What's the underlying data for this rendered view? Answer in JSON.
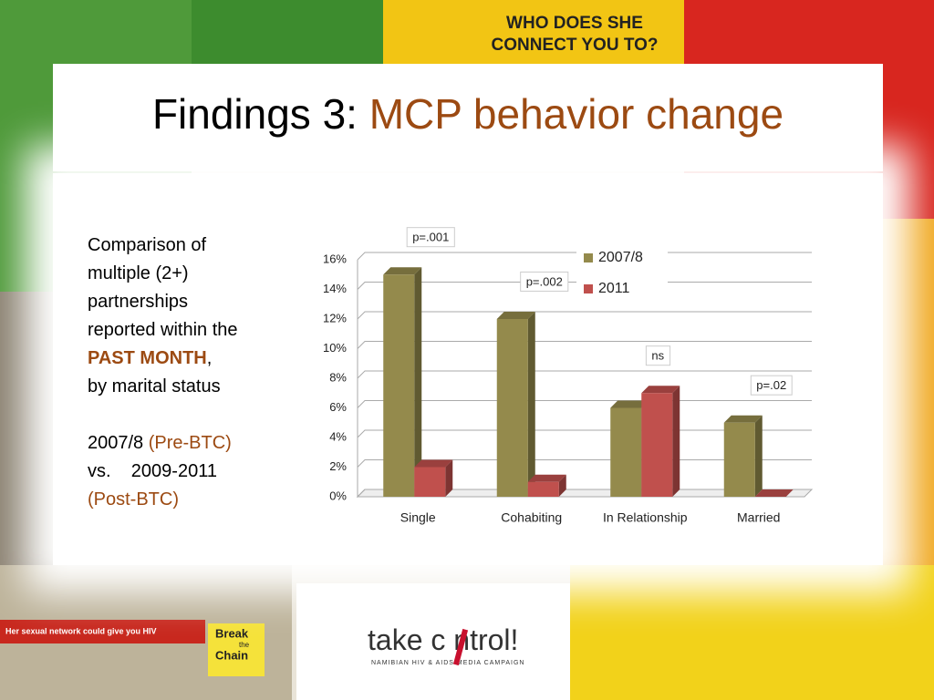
{
  "title": {
    "prefix": "Findings 3:",
    "highlight": "MCP behavior change"
  },
  "description": {
    "lines": [
      "Comparison of",
      "multiple (2+)",
      "partnerships",
      "reported within the"
    ],
    "emphasis": "PAST MONTH",
    "after": ",",
    "last": "by marital status"
  },
  "comparison": {
    "period1": "2007/8",
    "label1": "(Pre-BTC)",
    "vs": "vs.",
    "period2": "2009-2011",
    "label2": "(Post-BTC)"
  },
  "posters": {
    "top": [
      "WHO DOES SHE",
      "CONNECT YOU TO?"
    ],
    "banner": "Her sexual network could give you HIV",
    "chain": [
      "Break",
      "the",
      "Chain"
    ]
  },
  "logo": {
    "name": "take c ntrol!",
    "tagline": "NAMIBIAN HIV & AIDS MEDIA CAMPAIGN"
  },
  "chart_data": {
    "type": "bar",
    "categories": [
      "Single",
      "Cohabiting",
      "In Relationship",
      "Married"
    ],
    "series": [
      {
        "name": "2007/8",
        "color": "#948a4c",
        "values": [
          15,
          12,
          6,
          5
        ]
      },
      {
        "name": "2011",
        "color": "#c0504d",
        "values": [
          2,
          1,
          7,
          0
        ]
      }
    ],
    "annotations": [
      "p=.001",
      "p=.002",
      "ns",
      "p=.02"
    ],
    "ylim": [
      0,
      16
    ],
    "yticks": [
      {
        "value": 0,
        "label": "0%"
      },
      {
        "value": 2,
        "label": "2%"
      },
      {
        "value": 4,
        "label": "4%"
      },
      {
        "value": 6,
        "label": "6%"
      },
      {
        "value": 8,
        "label": "8%"
      },
      {
        "value": 10,
        "label": "10%"
      },
      {
        "value": 12,
        "label": "12%"
      },
      {
        "value": 14,
        "label": "14%"
      },
      {
        "value": 16,
        "label": "16%"
      }
    ],
    "grid": true,
    "legend": "top-right"
  }
}
